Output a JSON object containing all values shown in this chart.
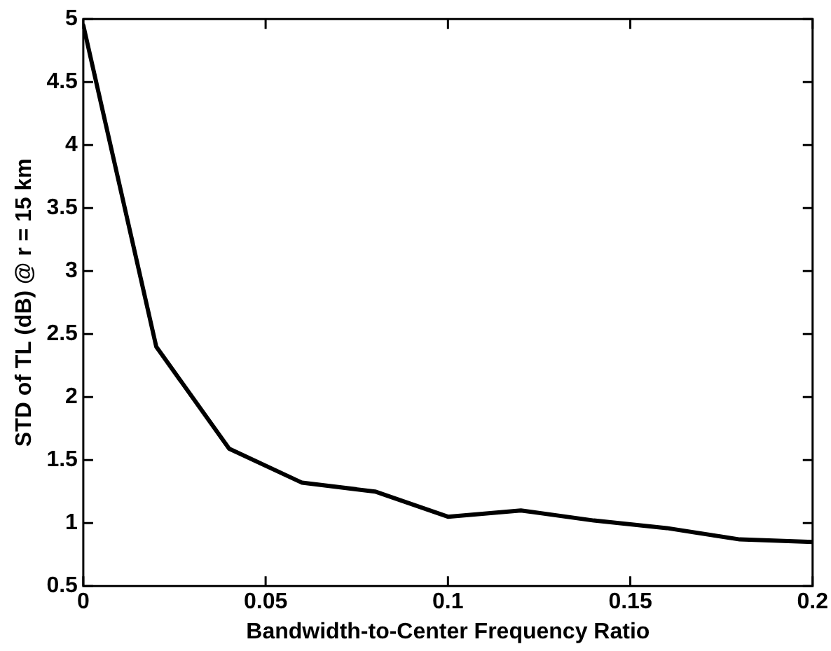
{
  "chart_data": {
    "type": "line",
    "xlabel": "Bandwidth-to-Center Frequency Ratio",
    "ylabel": "STD of TL (dB) @ r = 15 km",
    "x": [
      0,
      0.02,
      0.04,
      0.06,
      0.08,
      0.1,
      0.12,
      0.14,
      0.16,
      0.18,
      0.2
    ],
    "series": [
      {
        "color": "#000000",
        "values": [
          4.95,
          2.4,
          1.59,
          1.32,
          1.25,
          1.05,
          1.1,
          1.02,
          0.96,
          0.87,
          0.85
        ]
      }
    ],
    "xlim": [
      0,
      0.2
    ],
    "xticks": [
      0,
      0.05,
      0.1,
      0.15,
      0.2
    ],
    "ylim": [
      0.5,
      5
    ],
    "yticks": [
      0.5,
      1,
      1.5,
      2,
      2.5,
      3,
      3.5,
      4,
      4.5,
      5
    ],
    "grid": false,
    "legend": false,
    "marker": "none",
    "line_style": "solid"
  }
}
